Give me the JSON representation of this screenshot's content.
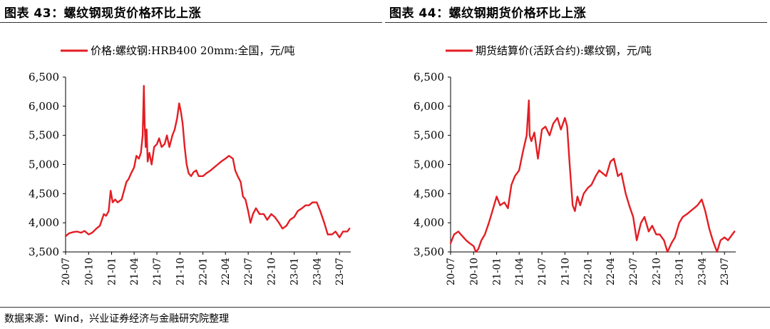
{
  "panels": [
    {
      "figure_title": "图表 43：螺纹钢现货价格环比上涨",
      "chart_data": {
        "type": "line",
        "title": "",
        "xlabel": "",
        "ylabel": "",
        "ylim": [
          3500,
          6500
        ],
        "yticks": [
          "3,500",
          "4,000",
          "4,500",
          "5,000",
          "5,500",
          "6,000",
          "6,500"
        ],
        "xticks": [
          "20-07",
          "20-10",
          "21-01",
          "21-04",
          "21-07",
          "21-10",
          "22-01",
          "22-04",
          "22-07",
          "22-10",
          "23-01",
          "23-04",
          "23-07"
        ],
        "x_range": [
          "2020-07-01",
          "2023-08-15"
        ],
        "grid": false,
        "legend_position": "top",
        "line_color": "#e31e24",
        "series": [
          {
            "name": "价格:螺纹钢:HRB400 20mm:全国，元/吨",
            "x": [
              "2020-07-01",
              "2020-07-15",
              "2020-08-01",
              "2020-08-15",
              "2020-09-01",
              "2020-09-15",
              "2020-10-01",
              "2020-10-15",
              "2020-11-01",
              "2020-11-15",
              "2020-12-01",
              "2020-12-10",
              "2020-12-20",
              "2020-12-28",
              "2021-01-05",
              "2021-01-15",
              "2021-01-25",
              "2021-02-10",
              "2021-03-01",
              "2021-03-10",
              "2021-03-20",
              "2021-04-01",
              "2021-04-10",
              "2021-04-20",
              "2021-04-28",
              "2021-05-05",
              "2021-05-10",
              "2021-05-13",
              "2021-05-17",
              "2021-05-21",
              "2021-05-25",
              "2021-06-01",
              "2021-06-10",
              "2021-06-20",
              "2021-07-01",
              "2021-07-10",
              "2021-07-20",
              "2021-08-01",
              "2021-08-10",
              "2021-08-20",
              "2021-09-01",
              "2021-09-10",
              "2021-09-20",
              "2021-09-28",
              "2021-10-05",
              "2021-10-12",
              "2021-10-20",
              "2021-10-28",
              "2021-11-05",
              "2021-11-15",
              "2021-11-25",
              "2021-12-05",
              "2021-12-15",
              "2022-01-01",
              "2022-01-15",
              "2022-02-01",
              "2022-02-15",
              "2022-03-01",
              "2022-03-15",
              "2022-04-01",
              "2022-04-15",
              "2022-05-01",
              "2022-05-10",
              "2022-05-20",
              "2022-06-01",
              "2022-06-10",
              "2022-06-20",
              "2022-07-01",
              "2022-07-10",
              "2022-07-20",
              "2022-08-01",
              "2022-08-15",
              "2022-09-01",
              "2022-09-15",
              "2022-10-01",
              "2022-10-15",
              "2022-11-01",
              "2022-11-15",
              "2022-12-01",
              "2022-12-15",
              "2023-01-01",
              "2023-01-15",
              "2023-02-01",
              "2023-02-15",
              "2023-03-01",
              "2023-03-15",
              "2023-04-01",
              "2023-04-15",
              "2023-05-01",
              "2023-05-15",
              "2023-06-01",
              "2023-06-15",
              "2023-07-01",
              "2023-07-15",
              "2023-08-01",
              "2023-08-10"
            ],
            "y": [
              3770,
              3820,
              3840,
              3850,
              3830,
              3860,
              3800,
              3830,
              3900,
              3950,
              4150,
              4120,
              4200,
              4550,
              4350,
              4400,
              4350,
              4400,
              4700,
              4750,
              4850,
              4950,
              5150,
              5100,
              5200,
              5500,
              6350,
              5700,
              5300,
              5600,
              5050,
              5200,
              5000,
              5300,
              5350,
              5450,
              5300,
              5350,
              5500,
              5300,
              5500,
              5600,
              5800,
              6050,
              5900,
              5700,
              5300,
              5000,
              4850,
              4800,
              4870,
              4900,
              4800,
              4800,
              4850,
              4900,
              4950,
              5000,
              5050,
              5100,
              5150,
              5100,
              4900,
              4800,
              4700,
              4450,
              4400,
              4200,
              4000,
              4150,
              4250,
              4150,
              4150,
              4050,
              4150,
              4100,
              4000,
              3900,
              3950,
              4050,
              4100,
              4200,
              4250,
              4300,
              4300,
              4350,
              4350,
              4200,
              4000,
              3800,
              3800,
              3850,
              3750,
              3850,
              3850,
              3900
            ]
          }
        ]
      }
    },
    {
      "figure_title": "图表 44：螺纹钢期货价格环比上涨",
      "chart_data": {
        "type": "line",
        "title": "",
        "xlabel": "",
        "ylabel": "",
        "ylim": [
          3500,
          6500
        ],
        "yticks": [
          "3,500",
          "4,000",
          "4,500",
          "5,000",
          "5,500",
          "6,000",
          "6,500"
        ],
        "xticks": [
          "20-07",
          "20-10",
          "21-01",
          "21-04",
          "21-07",
          "21-10",
          "22-01",
          "22-04",
          "22-07",
          "22-10",
          "23-01",
          "23-04",
          "23-07"
        ],
        "x_range": [
          "2020-07-01",
          "2023-08-15"
        ],
        "grid": false,
        "legend_position": "top",
        "line_color": "#e31e24",
        "series": [
          {
            "name": "期货结算价(活跃合约):螺纹钢，元/吨",
            "x": [
              "2020-07-01",
              "2020-07-15",
              "2020-08-01",
              "2020-08-15",
              "2020-09-01",
              "2020-09-15",
              "2020-10-01",
              "2020-10-10",
              "2020-10-20",
              "2020-11-01",
              "2020-11-15",
              "2020-12-01",
              "2020-12-15",
              "2021-01-01",
              "2021-01-15",
              "2021-02-01",
              "2021-02-15",
              "2021-03-01",
              "2021-03-15",
              "2021-04-01",
              "2021-04-15",
              "2021-05-01",
              "2021-05-10",
              "2021-05-13",
              "2021-05-20",
              "2021-06-01",
              "2021-06-15",
              "2021-07-01",
              "2021-07-15",
              "2021-08-01",
              "2021-08-15",
              "2021-09-01",
              "2021-09-15",
              "2021-10-01",
              "2021-10-10",
              "2021-10-20",
              "2021-11-01",
              "2021-11-10",
              "2021-11-20",
              "2021-12-01",
              "2021-12-15",
              "2022-01-01",
              "2022-01-15",
              "2022-02-01",
              "2022-02-15",
              "2022-03-01",
              "2022-03-15",
              "2022-04-01",
              "2022-04-15",
              "2022-05-01",
              "2022-05-15",
              "2022-06-01",
              "2022-06-15",
              "2022-07-01",
              "2022-07-15",
              "2022-08-01",
              "2022-08-15",
              "2022-09-01",
              "2022-09-15",
              "2022-10-01",
              "2022-10-15",
              "2022-11-01",
              "2022-11-15",
              "2022-12-01",
              "2022-12-15",
              "2023-01-01",
              "2023-01-15",
              "2023-02-01",
              "2023-02-15",
              "2023-03-01",
              "2023-03-15",
              "2023-04-01",
              "2023-04-15",
              "2023-05-01",
              "2023-05-15",
              "2023-06-01",
              "2023-06-15",
              "2023-07-01",
              "2023-07-15",
              "2023-08-01",
              "2023-08-10"
            ],
            "y": [
              3650,
              3800,
              3850,
              3780,
              3700,
              3650,
              3600,
              3500,
              3550,
              3700,
              3800,
              4000,
              4200,
              4450,
              4300,
              4350,
              4250,
              4650,
              4800,
              4900,
              5200,
              5500,
              6100,
              5500,
              5400,
              5550,
              5100,
              5600,
              5650,
              5500,
              5700,
              5800,
              5600,
              5800,
              5650,
              5000,
              4300,
              4200,
              4450,
              4300,
              4500,
              4600,
              4650,
              4800,
              4900,
              4850,
              4800,
              5050,
              5100,
              4800,
              4850,
              4500,
              4300,
              4100,
              3700,
              4000,
              4100,
              3850,
              3950,
              3800,
              3800,
              3700,
              3500,
              3650,
              3750,
              4000,
              4100,
              4150,
              4200,
              4250,
              4300,
              4400,
              4200,
              3900,
              3700,
              3500,
              3700,
              3750,
              3700,
              3800,
              3850
            ]
          }
        ]
      }
    }
  ],
  "source": "数据来源：Wind，兴业证券经济与金融研究院整理"
}
